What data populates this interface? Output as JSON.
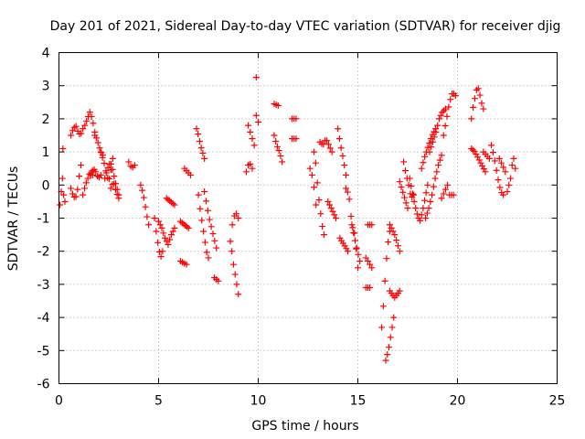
{
  "chart_data": {
    "type": "scatter",
    "title": "Day 201 of 2021, Sidereal Day-to-day VTEC variation (SDTVAR) for receiver djig",
    "xlabel": "GPS time / hours",
    "ylabel": "SDTVAR / TECUs",
    "xlim": [
      0,
      25
    ],
    "ylim": [
      -6,
      4
    ],
    "xticks": [
      0,
      5,
      10,
      15,
      20,
      25
    ],
    "yticks": [
      -6,
      -5,
      -4,
      -3,
      -2,
      -1,
      0,
      1,
      2,
      3,
      4
    ],
    "grid": true,
    "marker": "+",
    "series": [
      {
        "name": "SDTVAR",
        "color": "#ff0000",
        "segments": [
          {
            "x0": 0.05,
            "x1": 0.3,
            "y": [
              -0.6,
              -0.2,
              0.2,
              -0.3,
              -0.5
            ]
          },
          {
            "x0": 0.2,
            "x1": 0.25,
            "y": [
              1.1
            ]
          },
          {
            "x0": 0.6,
            "x1": 1.1,
            "y": [
              -0.1,
              -0.3,
              -0.4,
              -0.3,
              0.2,
              0.6
            ]
          },
          {
            "x0": 0.6,
            "x1": 1.2,
            "y": [
              1.5,
              1.7,
              1.8,
              1.6,
              1.5,
              1.7
            ]
          },
          {
            "x0": 1.2,
            "x1": 1.7,
            "y": [
              -0.3,
              0.0,
              0.2,
              0.4,
              0.3
            ]
          },
          {
            "x0": 1.3,
            "x1": 1.8,
            "y": [
              1.8,
              2.0,
              2.2,
              2.0,
              1.6
            ]
          },
          {
            "x0": 1.6,
            "x1": 2.1,
            "y": [
              0.3,
              0.5,
              0.4,
              0.2,
              0.3
            ]
          },
          {
            "x0": 1.8,
            "x1": 2.2,
            "y": [
              1.5,
              1.4,
              1.2,
              1.0,
              0.9
            ]
          },
          {
            "x0": 2.1,
            "x1": 2.7,
            "y": [
              1.0,
              0.8,
              0.6,
              0.3,
              0.1,
              0.4,
              0.8
            ]
          },
          {
            "x0": 2.3,
            "x1": 3.0,
            "y": [
              0.2,
              0.5,
              0.7,
              0.4,
              0.0,
              -0.3
            ]
          },
          {
            "x0": 2.6,
            "x1": 3.0,
            "y": [
              -0.1,
              0.1,
              -0.2,
              -0.4
            ]
          },
          {
            "x0": 3.5,
            "x1": 3.8,
            "y": [
              0.7,
              0.5,
              0.6
            ]
          },
          {
            "x0": 4.1,
            "x1": 4.5,
            "y": [
              0.0,
              -0.2,
              -0.5,
              -0.9,
              -1.2
            ]
          },
          {
            "x0": 4.8,
            "x1": 5.2,
            "y": [
              -1.0,
              -1.5,
              -1.9,
              -2.2,
              -2.0
            ]
          },
          {
            "x0": 5.0,
            "x1": 5.8,
            "y": [
              -1.1,
              -1.3,
              -1.6,
              -1.8,
              -1.5,
              -1.3
            ]
          },
          {
            "x0": 5.4,
            "x1": 5.8,
            "y": [
              -0.4,
              -0.5,
              -0.6
            ]
          },
          {
            "x0": 6.1,
            "x1": 6.4,
            "y": [
              -2.3,
              -2.4
            ]
          },
          {
            "x0": 6.1,
            "x1": 6.5,
            "y": [
              -1.1,
              -1.2,
              -1.3
            ]
          },
          {
            "x0": 6.3,
            "x1": 6.6,
            "y": [
              0.5,
              0.3
            ]
          },
          {
            "x0": 6.9,
            "x1": 7.3,
            "y": [
              1.7,
              1.5,
              1.2,
              1.0,
              0.8
            ]
          },
          {
            "x0": 7.0,
            "x1": 7.5,
            "y": [
              -0.3,
              -0.8,
              -1.2,
              -1.6,
              -2.0,
              -2.2
            ]
          },
          {
            "x0": 7.3,
            "x1": 7.9,
            "y": [
              -0.2,
              -0.6,
              -1.0,
              -1.3,
              -1.6,
              -1.9
            ]
          },
          {
            "x0": 7.8,
            "x1": 8.0,
            "y": [
              -2.8,
              -2.9
            ]
          },
          {
            "x0": 8.6,
            "x1": 9.0,
            "y": [
              -1.7,
              -2.0,
              -2.4,
              -2.7,
              -3.0,
              -3.3
            ]
          },
          {
            "x0": 8.7,
            "x1": 9.0,
            "y": [
              -1.2,
              -0.8,
              -1.0
            ]
          },
          {
            "x0": 9.4,
            "x1": 9.7,
            "y": [
              0.4,
              0.7,
              0.5
            ]
          },
          {
            "x0": 9.5,
            "x1": 9.8,
            "y": [
              1.8,
              1.5,
              1.2
            ]
          },
          {
            "x0": 9.9,
            "x1": 10.0,
            "y": [
              3.25
            ]
          },
          {
            "x0": 9.9,
            "x1": 10.0,
            "y": [
              2.1,
              1.9
            ]
          },
          {
            "x0": 10.8,
            "x1": 11.0,
            "y": [
              2.45,
              2.4
            ]
          },
          {
            "x0": 10.8,
            "x1": 11.2,
            "y": [
              1.5,
              1.2,
              1.0,
              0.7
            ]
          },
          {
            "x0": 11.7,
            "x1": 11.9,
            "y": [
              2.0
            ]
          },
          {
            "x0": 11.7,
            "x1": 11.9,
            "y": [
              1.4
            ]
          },
          {
            "x0": 12.6,
            "x1": 12.9,
            "y": [
              0.5,
              0.2,
              -0.6
            ]
          },
          {
            "x0": 12.8,
            "x1": 13.3,
            "y": [
              1.0,
              0.6,
              -0.2,
              -0.7,
              -1.2,
              -1.5
            ]
          },
          {
            "x0": 13.1,
            "x1": 13.7,
            "y": [
              1.3,
              1.2,
              1.4,
              1.2,
              1.0
            ]
          },
          {
            "x0": 13.5,
            "x1": 13.9,
            "y": [
              -0.5,
              -1.0
            ]
          },
          {
            "x0": 14.0,
            "x1": 14.4,
            "y": [
              1.7,
              1.2,
              0.8,
              0.3
            ]
          },
          {
            "x0": 14.1,
            "x1": 14.5,
            "y": [
              -1.6,
              -1.8,
              -2.0
            ]
          },
          {
            "x0": 14.4,
            "x1": 15.0,
            "y": [
              -0.1,
              -0.3,
              -1.2,
              -1.5,
              -2.5
            ]
          },
          {
            "x0": 14.7,
            "x1": 15.1,
            "y": [
              -1.2,
              -1.8,
              -2.3
            ]
          },
          {
            "x0": 15.5,
            "x1": 15.7,
            "y": [
              -1.2
            ]
          },
          {
            "x0": 15.4,
            "x1": 15.7,
            "y": [
              -2.2,
              -2.5
            ]
          },
          {
            "x0": 15.4,
            "x1": 15.6,
            "y": [
              -3.1
            ]
          },
          {
            "x0": 16.2,
            "x1": 16.6,
            "y": [
              -4.3,
              -3.5,
              -2.5,
              -1.8,
              -1.4
            ]
          },
          {
            "x0": 16.4,
            "x1": 16.8,
            "y": [
              -5.3,
              -5.0,
              -4.5,
              -4.0
            ]
          },
          {
            "x0": 16.6,
            "x1": 17.1,
            "y": [
              -3.2,
              -3.4,
              -3.2
            ]
          },
          {
            "x0": 16.6,
            "x1": 17.1,
            "y": [
              -1.2,
              -1.5,
              -2.0
            ]
          },
          {
            "x0": 17.1,
            "x1": 17.5,
            "y": [
              0.1,
              -0.3,
              -0.7
            ]
          },
          {
            "x0": 17.3,
            "x1": 17.8,
            "y": [
              0.7,
              0.3,
              0.0,
              -0.4,
              -0.3
            ]
          },
          {
            "x0": 17.6,
            "x1": 18.5,
            "y": [
              0.2,
              -0.2,
              -0.6,
              -0.9,
              -1.1,
              -0.8,
              -0.4,
              0.0
            ]
          },
          {
            "x0": 18.2,
            "x1": 18.9,
            "y": [
              0.5,
              0.9,
              1.2,
              1.5,
              1.7
            ]
          },
          {
            "x0": 18.4,
            "x1": 19.2,
            "y": [
              -1.0,
              -0.7,
              -0.3,
              0.2,
              0.6,
              0.9
            ]
          },
          {
            "x0": 18.6,
            "x1": 19.4,
            "y": [
              1.0,
              1.3,
              1.6,
              2.0,
              2.2,
              2.3
            ]
          },
          {
            "x0": 19.2,
            "x1": 19.5,
            "y": [
              -0.4,
              -0.2,
              0.0
            ]
          },
          {
            "x0": 19.3,
            "x1": 19.9,
            "y": [
              1.5,
              2.0,
              2.5,
              2.8,
              2.7
            ]
          },
          {
            "x0": 19.6,
            "x1": 19.8,
            "y": [
              -0.3
            ]
          },
          {
            "x0": 20.7,
            "x1": 21.3,
            "y": [
              2.0,
              2.4,
              2.7,
              3.0,
              2.8,
              2.5,
              2.3
            ]
          },
          {
            "x0": 20.7,
            "x1": 21.4,
            "y": [
              1.1,
              1.0,
              0.8,
              0.6,
              0.4
            ]
          },
          {
            "x0": 21.3,
            "x1": 21.6,
            "y": [
              1.0,
              0.8
            ]
          },
          {
            "x0": 21.7,
            "x1": 22.3,
            "y": [
              1.2,
              0.9,
              0.5,
              0.1,
              -0.2,
              -0.3
            ]
          },
          {
            "x0": 22.1,
            "x1": 22.4,
            "y": [
              0.8,
              0.6,
              0.4
            ]
          },
          {
            "x0": 22.5,
            "x1": 22.9,
            "y": [
              -0.2,
              0.0,
              0.2,
              0.6,
              0.8,
              0.5
            ]
          }
        ]
      }
    ]
  }
}
